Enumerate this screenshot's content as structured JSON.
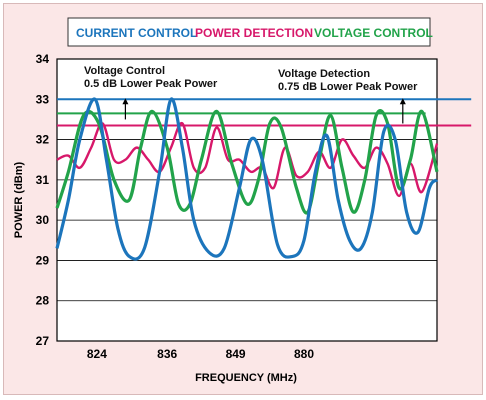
{
  "chart_data": {
    "type": "line",
    "title": "",
    "legend": [
      "CURRENT CONTROL",
      "POWER DETECTION",
      "VOLTAGE CONTROL"
    ],
    "xlabel": "FREQUENCY (MHz)",
    "ylabel": "POWER (dBm)",
    "ylim": [
      27,
      34
    ],
    "xlim": [
      0,
      10
    ],
    "x_ticks": [
      {
        "label": "824",
        "pos": 1.05
      },
      {
        "label": "836",
        "pos": 2.9
      },
      {
        "label": "849",
        "pos": 4.7
      },
      {
        "label": "880",
        "pos": 6.5
      }
    ],
    "y_ticks": [
      "34",
      "33",
      "32",
      "31",
      "30",
      "29",
      "28",
      "27"
    ],
    "grid": "horizontal",
    "annotations": [
      {
        "lines": [
          "Voltage Control",
          "0.5 dB Lower Peak Power"
        ],
        "anchor_x": 1.8,
        "from_y": 32.5,
        "to_y": 33.0
      },
      {
        "lines": [
          "Voltage Detection",
          "0.75 dB Lower Peak Power"
        ],
        "anchor_x": 9.1,
        "from_y": 32.4,
        "to_y": 33.0
      }
    ],
    "reference_lines": [
      {
        "series": "CURRENT CONTROL",
        "y": 33.0,
        "x_range": [
          0,
          10
        ]
      },
      {
        "series": "POWER DETECTION",
        "y": 32.35,
        "x_range": [
          0,
          10
        ]
      },
      {
        "series": "VOLTAGE CONTROL",
        "y": 32.65,
        "x_range": [
          0,
          10
        ]
      }
    ],
    "colors": {
      "CURRENT CONTROL": "#1c75bc",
      "POWER DETECTION": "#d7186a",
      "VOLTAGE CONTROL": "#22a34a"
    },
    "series": [
      {
        "name": "CURRENT CONTROL",
        "x": [
          0,
          0.3,
          0.6,
          1.0,
          1.3,
          1.6,
          1.9,
          2.3,
          2.7,
          3.0,
          3.3,
          3.6,
          4.0,
          4.4,
          4.8,
          5.1,
          5.4,
          5.8,
          6.2,
          6.5,
          6.8,
          7.1,
          7.4,
          7.7,
          8.0,
          8.3,
          8.6,
          8.9,
          9.2,
          9.5,
          9.8,
          10.0
        ],
        "values": [
          29.3,
          30.5,
          32.0,
          33.0,
          31.5,
          29.8,
          29.1,
          29.3,
          31.2,
          33.0,
          31.8,
          30.0,
          29.2,
          29.3,
          30.8,
          32.0,
          31.5,
          29.4,
          29.1,
          29.5,
          31.2,
          32.1,
          30.5,
          29.5,
          29.3,
          30.2,
          32.2,
          32.0,
          30.2,
          29.7,
          30.8,
          31.0
        ]
      },
      {
        "name": "POWER DETECTION",
        "x": [
          0,
          0.3,
          0.6,
          0.9,
          1.2,
          1.5,
          1.8,
          2.1,
          2.4,
          2.7,
          3.0,
          3.3,
          3.6,
          3.9,
          4.2,
          4.5,
          4.8,
          5.1,
          5.4,
          5.7,
          6.0,
          6.3,
          6.6,
          6.9,
          7.2,
          7.5,
          7.8,
          8.1,
          8.4,
          8.7,
          9.0,
          9.3,
          9.6,
          10.0
        ],
        "values": [
          31.5,
          31.6,
          31.3,
          31.8,
          32.4,
          31.5,
          31.5,
          31.8,
          31.5,
          31.2,
          31.8,
          32.4,
          31.3,
          31.3,
          32.3,
          31.5,
          31.5,
          31.2,
          31.3,
          30.8,
          31.8,
          31.1,
          31.2,
          31.7,
          31.3,
          32.0,
          31.6,
          31.3,
          31.8,
          31.4,
          30.6,
          31.4,
          30.7,
          31.9
        ]
      },
      {
        "name": "VOLTAGE CONTROL",
        "x": [
          0,
          0.3,
          0.7,
          1.1,
          1.5,
          1.9,
          2.2,
          2.5,
          2.9,
          3.2,
          3.5,
          3.8,
          4.2,
          4.6,
          5.0,
          5.3,
          5.6,
          5.9,
          6.3,
          6.6,
          6.9,
          7.2,
          7.5,
          7.8,
          8.1,
          8.4,
          8.7,
          9.0,
          9.3,
          9.6,
          10.0
        ],
        "values": [
          30.3,
          31.2,
          32.6,
          32.4,
          31.0,
          30.5,
          31.8,
          32.7,
          31.8,
          30.4,
          30.4,
          31.5,
          32.7,
          31.4,
          30.4,
          31.0,
          32.4,
          32.3,
          30.8,
          30.2,
          31.5,
          32.6,
          31.3,
          30.2,
          31.0,
          32.6,
          32.4,
          30.8,
          31.5,
          32.7,
          31.2
        ]
      }
    ]
  }
}
